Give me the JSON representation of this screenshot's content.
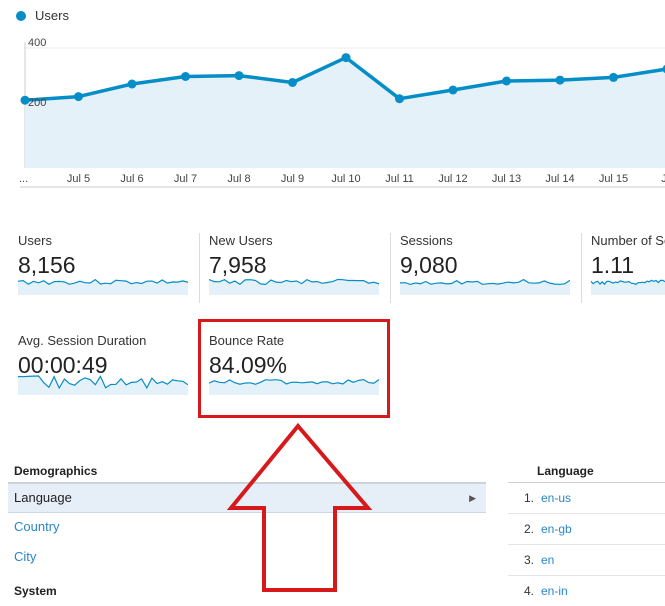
{
  "legend": {
    "series_name": "Users",
    "color": "#058dc7"
  },
  "chart_data": {
    "type": "area",
    "x": [
      "...",
      "Jul 5",
      "Jul 6",
      "Jul 7",
      "Jul 8",
      "Jul 9",
      "Jul 10",
      "Jul 11",
      "Jul 12",
      "Jul 13",
      "Jul 14",
      "Jul 15",
      "Ju"
    ],
    "series": [
      {
        "name": "Users",
        "values": [
          226,
          238,
          280,
          305,
          308,
          285,
          368,
          231,
          260,
          290,
          293,
          302,
          330
        ]
      }
    ],
    "y_ticks": [
      "400",
      "200"
    ],
    "ylim": [
      0,
      400
    ],
    "grid": true,
    "line_color": "#058dc7",
    "fill_color": "#e5f1f8"
  },
  "metrics": [
    {
      "label": "Users",
      "value": "8,156"
    },
    {
      "label": "New Users",
      "value": "7,958"
    },
    {
      "label": "Sessions",
      "value": "9,080"
    },
    {
      "label": "Number of Se",
      "value": "1.11"
    },
    {
      "label": "Avg. Session Duration",
      "value": "00:00:49"
    },
    {
      "label": "Bounce Rate",
      "value": "84.09%"
    }
  ],
  "highlight": {
    "color": "#d7191c",
    "target": "Bounce Rate"
  },
  "demographics": {
    "header": "Demographics",
    "items": [
      {
        "label": "Language",
        "selected": true
      },
      {
        "label": "Country",
        "selected": false
      },
      {
        "label": "City",
        "selected": false
      }
    ],
    "system_header": "System"
  },
  "language": {
    "header": "Language",
    "rows": [
      {
        "rank": "1.",
        "value": "en-us"
      },
      {
        "rank": "2.",
        "value": "en-gb"
      },
      {
        "rank": "3.",
        "value": "en"
      },
      {
        "rank": "4.",
        "value": "en-in"
      }
    ]
  },
  "icons": {
    "row_chevron": "chevron-right-icon",
    "annotation_arrow": "up-arrow-icon"
  }
}
